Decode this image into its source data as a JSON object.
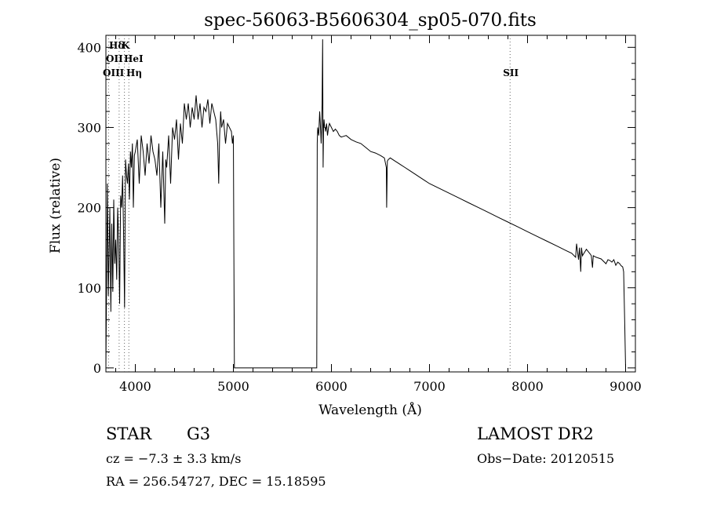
{
  "chart_data": {
    "type": "line",
    "title": "spec-56063-B5606304_sp05-070.fits",
    "xlabel": "Wavelength (Å)",
    "ylabel": "Flux (relative)",
    "xlim": [
      3700,
      9100
    ],
    "ylim": [
      -5,
      415
    ],
    "xticks": [
      4000,
      5000,
      6000,
      7000,
      8000,
      9000
    ],
    "yticks": [
      0,
      100,
      200,
      300,
      400
    ],
    "grid": false,
    "line_color": "#000000",
    "marker_line_color": "#666666",
    "line_markers": [
      {
        "label": "Hδ",
        "x": 3889
      },
      {
        "label": "K",
        "x": 3934
      },
      {
        "label": "OII",
        "x": 3727
      },
      {
        "label": "HeI",
        "x": 3889
      },
      {
        "label": "OIII",
        "x": 3727
      },
      {
        "label": "Hη",
        "x": 3835
      },
      {
        "label": "SII",
        "x": 7822
      }
    ],
    "series": [
      {
        "x": [
          3700,
          3715,
          3725,
          3740,
          3750,
          3760,
          3770,
          3780,
          3790,
          3800,
          3810,
          3820,
          3830,
          3840,
          3850,
          3860,
          3870,
          3880,
          3890,
          3900,
          3910,
          3920,
          3930,
          3940,
          3950,
          3960,
          3970,
          3980,
          3990,
          4000,
          4020,
          4040,
          4060,
          4080,
          4100,
          4120,
          4140,
          4160,
          4180,
          4200,
          4220,
          4240,
          4260,
          4280,
          4300,
          4310,
          4320,
          4340,
          4360,
          4380,
          4400,
          4420,
          4440,
          4460,
          4480,
          4500,
          4520,
          4540,
          4560,
          4580,
          4600,
          4620,
          4640,
          4660,
          4680,
          4700,
          4720,
          4740,
          4760,
          4780,
          4800,
          4820,
          4840,
          4850,
          4860,
          4870,
          4880,
          4900,
          4920,
          4940,
          4960,
          4980,
          4990,
          5000,
          5005,
          5010,
          5850,
          5855,
          5860,
          5870,
          5880,
          5890,
          5895,
          5900,
          5905,
          5910,
          5915,
          5920,
          5925,
          5930,
          5935,
          5940,
          5950,
          5960,
          5970,
          5980,
          6000,
          6020,
          6040,
          6060,
          6080,
          6100,
          6150,
          6200,
          6250,
          6300,
          6350,
          6400,
          6450,
          6500,
          6540,
          6560,
          6563,
          6570,
          6580,
          6600,
          6650,
          6700,
          6750,
          6800,
          6850,
          6900,
          6950,
          7000,
          7100,
          7200,
          7300,
          7400,
          7500,
          7600,
          7700,
          7800,
          7900,
          8000,
          8100,
          8200,
          8300,
          8400,
          8450,
          8490,
          8500,
          8520,
          8530,
          8542,
          8550,
          8560,
          8600,
          8640,
          8650,
          8662,
          8670,
          8700,
          8750,
          8800,
          8820,
          8840,
          8860,
          8880,
          8900,
          8920,
          8940,
          8950,
          8960,
          8970,
          8980,
          8990,
          9000
        ],
        "values": [
          0,
          230,
          90,
          200,
          70,
          180,
          95,
          210,
          130,
          160,
          110,
          200,
          160,
          80,
          215,
          200,
          240,
          170,
          75,
          260,
          240,
          230,
          255,
          210,
          270,
          250,
          280,
          200,
          265,
          270,
          285,
          230,
          290,
          270,
          240,
          280,
          255,
          290,
          270,
          260,
          240,
          280,
          200,
          270,
          180,
          260,
          250,
          290,
          230,
          300,
          285,
          310,
          260,
          305,
          280,
          330,
          310,
          330,
          300,
          325,
          310,
          340,
          310,
          330,
          300,
          325,
          320,
          335,
          305,
          330,
          320,
          310,
          280,
          230,
          290,
          320,
          300,
          310,
          280,
          305,
          300,
          295,
          280,
          290,
          150,
          0,
          0,
          280,
          300,
          290,
          320,
          295,
          280,
          300,
          330,
          410,
          250,
          300,
          310,
          300,
          300,
          295,
          305,
          290,
          300,
          305,
          300,
          295,
          298,
          295,
          290,
          288,
          290,
          285,
          282,
          280,
          275,
          270,
          268,
          265,
          262,
          250,
          200,
          258,
          260,
          262,
          258,
          254,
          250,
          246,
          242,
          238,
          234,
          230,
          224,
          218,
          212,
          206,
          200,
          194,
          188,
          182,
          176,
          170,
          164,
          158,
          152,
          146,
          143,
          138,
          155,
          135,
          150,
          120,
          150,
          140,
          148,
          142,
          140,
          125,
          140,
          138,
          136,
          130,
          135,
          134,
          132,
          135,
          128,
          132,
          130,
          128,
          127,
          126,
          120,
          60,
          0
        ]
      }
    ],
    "info": {
      "object_type": "STAR",
      "subclass": "G3",
      "redshift": "cz = −7.3 ± 3.3 km/s",
      "coords": "RA = 256.54727, DEC =  15.18595",
      "survey": "LAMOST DR2",
      "obs_date": "Obs−Date: 20120515"
    }
  }
}
